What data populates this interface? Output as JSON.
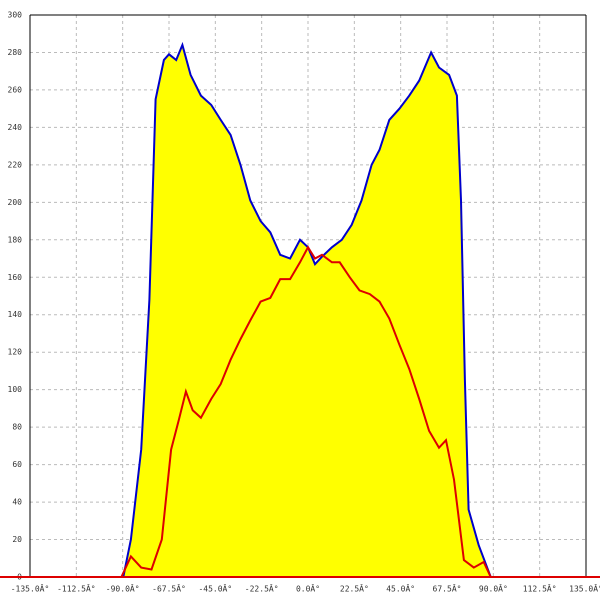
{
  "chart_data": {
    "type": "area",
    "xlim": [
      -135,
      135
    ],
    "ylim": [
      0,
      300
    ],
    "xticks": [
      {
        "value": -135,
        "label": "-135.0Â°"
      },
      {
        "value": -112.5,
        "label": "-112.5Â°"
      },
      {
        "value": -90,
        "label": "-90.0Â°"
      },
      {
        "value": -67.5,
        "label": "-67.5Â°"
      },
      {
        "value": -45,
        "label": "-45.0Â°"
      },
      {
        "value": -22.5,
        "label": "-22.5Â°"
      },
      {
        "value": 0,
        "label": "0.0Â°"
      },
      {
        "value": 22.5,
        "label": "22.5Â°"
      },
      {
        "value": 45,
        "label": "45.0Â°"
      },
      {
        "value": 67.5,
        "label": "67.5Â°"
      },
      {
        "value": 90,
        "label": "90.0Â°"
      },
      {
        "value": 112.5,
        "label": "112.5Â°"
      },
      {
        "value": 135,
        "label": "135.0Â°"
      }
    ],
    "yticks": [
      0,
      20,
      40,
      60,
      80,
      100,
      120,
      140,
      160,
      180,
      200,
      220,
      240,
      260,
      280,
      300
    ],
    "grid": true,
    "series": [
      {
        "color": "#0000cc",
        "fill": "#ffff00",
        "x": [
          -89.7,
          -86,
          -81,
          -77,
          -74,
          -70,
          -67.5,
          -64,
          -61,
          -57,
          -52,
          -47,
          -42.4,
          -37.6,
          -32.8,
          -28,
          -23,
          -18.3,
          -13.5,
          -8.7,
          -3.9,
          0,
          3.4,
          6.8,
          11.6,
          16.4,
          21.2,
          26,
          30.9,
          34.7,
          39.5,
          44.4,
          49.2,
          54,
          59.8,
          63.6,
          68.5,
          72.3,
          74.3,
          76.2,
          78,
          82.9,
          88.7
        ],
        "values": [
          0,
          20,
          68,
          148,
          255,
          276,
          279,
          276,
          284,
          268,
          257,
          252,
          244,
          236,
          220,
          201,
          190,
          184,
          172,
          170,
          180,
          176,
          167,
          171,
          176,
          180,
          188,
          201,
          220,
          228,
          244,
          250,
          257,
          265,
          280,
          272,
          268,
          257,
          201,
          105,
          36,
          17,
          0
        ]
      },
      {
        "color": "#dd0000",
        "x": [
          -90.6,
          -86,
          -81,
          -76,
          -71,
          -66.5,
          -62.7,
          -59.3,
          -56,
          -52,
          -47,
          -42.4,
          -37.6,
          -32.8,
          -28,
          -23,
          -18.3,
          -13.5,
          -8.7,
          -3.9,
          0,
          3.4,
          6.8,
          11.6,
          15.4,
          20.3,
          25,
          30,
          34.7,
          39.5,
          44.4,
          49.2,
          54,
          58.8,
          63.6,
          67,
          70.9,
          75.7,
          80.5,
          85.3,
          88.7
        ],
        "values": [
          0,
          11,
          5,
          4,
          20,
          68,
          84,
          99,
          89,
          85,
          95,
          103,
          116,
          127,
          137,
          147,
          149,
          159,
          159,
          168,
          176,
          170,
          172,
          168,
          168,
          160,
          153,
          151,
          147,
          138,
          124,
          111,
          95,
          78,
          69,
          73,
          52,
          9,
          5,
          8,
          0
        ]
      }
    ]
  }
}
